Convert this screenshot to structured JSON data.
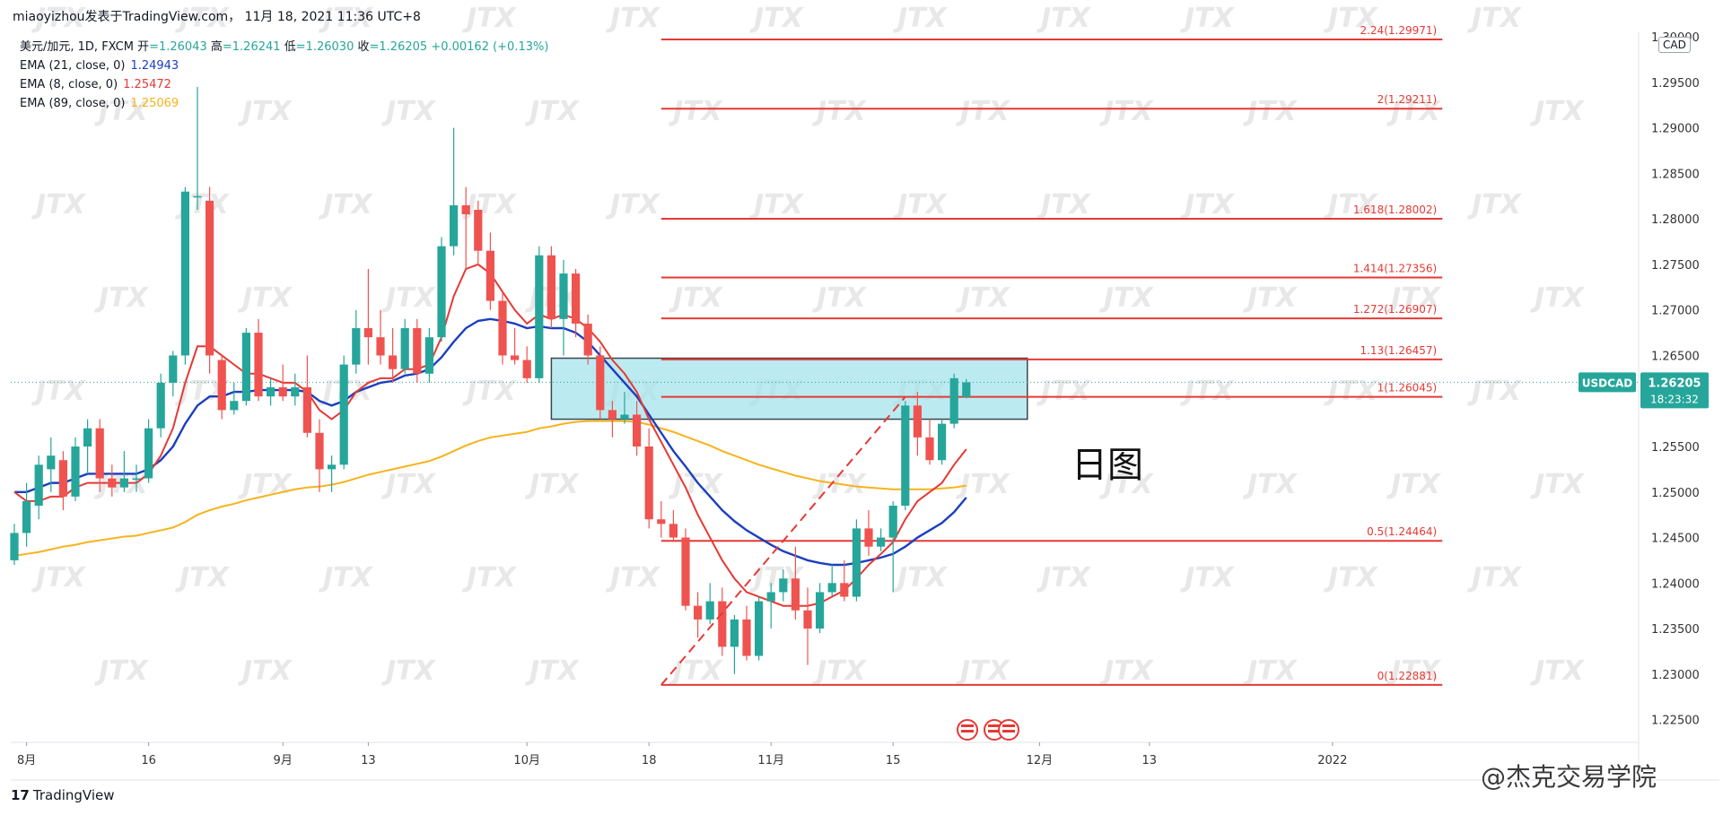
{
  "header": {
    "caption": "miaoyizhou发表于TradingView.com， 11月 18, 2021 11:36 UTC+8"
  },
  "legend": {
    "symbol_line": "美元/加元, 1D, FXCM",
    "open_label": "开",
    "open_value": "=1.26043",
    "high_label": "高",
    "high_value": "=1.26241",
    "low_label": "低",
    "low_value": "=1.26030",
    "close_label": "收",
    "close_value": "=1.26205",
    "change": "+0.00162 (+0.13%)",
    "ema21": {
      "label": "EMA (21, close, 0)",
      "value": "1.24943",
      "color": "#1a3fbf"
    },
    "ema8": {
      "label": "EMA (8, close, 0)",
      "value": "1.25472",
      "color": "#e53935"
    },
    "ema89": {
      "label": "EMA (89, close, 0)",
      "value": "1.25069",
      "color": "#f6b31c"
    }
  },
  "currency_badge": "CAD",
  "price_tag": {
    "symbol": "USDCAD",
    "price": "1.26205",
    "countdown": "18:23:32",
    "color": "#26a69a"
  },
  "note": "日图",
  "footer": {
    "logo_mark": "17",
    "logo_text": "TradingView",
    "brand": "@杰克交易学院"
  },
  "watermark_text": "JTX",
  "colors": {
    "up": "#26a69a",
    "down": "#ef5350",
    "fib": "#e53935",
    "zone_fill": "#a6e3ec",
    "zone_border": "#37474f"
  },
  "chart_data": {
    "type": "candlestick",
    "ylim": [
      1.2225,
      1.3005
    ],
    "y_ticks": [
      "1.22500",
      "1.23000",
      "1.23500",
      "1.24000",
      "1.24500",
      "1.25000",
      "1.25500",
      "1.26000",
      "1.26500",
      "1.27000",
      "1.27500",
      "1.28000",
      "1.28500",
      "1.29000",
      "1.29500",
      "1.30000"
    ],
    "x_ticks": [
      {
        "label": "8月",
        "i": 1
      },
      {
        "label": "16",
        "i": 11
      },
      {
        "label": "9月",
        "i": 22
      },
      {
        "label": "13",
        "i": 29
      },
      {
        "label": "10月",
        "i": 42
      },
      {
        "label": "18",
        "i": 52
      },
      {
        "label": "11月",
        "i": 62
      },
      {
        "label": "15",
        "i": 72
      },
      {
        "label": "12月",
        "i": 84
      },
      {
        "label": "13",
        "i": 93
      },
      {
        "label": "2022",
        "i": 108
      }
    ],
    "candles": [
      {
        "o": 1.2425,
        "h": 1.2465,
        "l": 1.242,
        "c": 1.2455
      },
      {
        "o": 1.2455,
        "h": 1.251,
        "l": 1.244,
        "c": 1.249
      },
      {
        "o": 1.2485,
        "h": 1.254,
        "l": 1.247,
        "c": 1.253
      },
      {
        "o": 1.2525,
        "h": 1.256,
        "l": 1.25,
        "c": 1.254
      },
      {
        "o": 1.2535,
        "h": 1.2545,
        "l": 1.248,
        "c": 1.2495
      },
      {
        "o": 1.2495,
        "h": 1.256,
        "l": 1.249,
        "c": 1.255
      },
      {
        "o": 1.255,
        "h": 1.258,
        "l": 1.252,
        "c": 1.257
      },
      {
        "o": 1.257,
        "h": 1.258,
        "l": 1.25,
        "c": 1.2515
      },
      {
        "o": 1.2515,
        "h": 1.253,
        "l": 1.2495,
        "c": 1.2505
      },
      {
        "o": 1.2505,
        "h": 1.2545,
        "l": 1.25,
        "c": 1.2515
      },
      {
        "o": 1.2515,
        "h": 1.253,
        "l": 1.25,
        "c": 1.2515
      },
      {
        "o": 1.2515,
        "h": 1.258,
        "l": 1.251,
        "c": 1.257
      },
      {
        "o": 1.257,
        "h": 1.263,
        "l": 1.256,
        "c": 1.262
      },
      {
        "o": 1.262,
        "h": 1.2655,
        "l": 1.2605,
        "c": 1.265
      },
      {
        "o": 1.265,
        "h": 1.2835,
        "l": 1.264,
        "c": 1.283
      },
      {
        "o": 1.2825,
        "h": 1.2945,
        "l": 1.281,
        "c": 1.2825
      },
      {
        "o": 1.282,
        "h": 1.2835,
        "l": 1.263,
        "c": 1.265
      },
      {
        "o": 1.2645,
        "h": 1.265,
        "l": 1.258,
        "c": 1.259
      },
      {
        "o": 1.259,
        "h": 1.262,
        "l": 1.2585,
        "c": 1.26
      },
      {
        "o": 1.26,
        "h": 1.268,
        "l": 1.2595,
        "c": 1.2675
      },
      {
        "o": 1.2675,
        "h": 1.269,
        "l": 1.26,
        "c": 1.2605
      },
      {
        "o": 1.2605,
        "h": 1.2625,
        "l": 1.2595,
        "c": 1.2615
      },
      {
        "o": 1.2615,
        "h": 1.264,
        "l": 1.26,
        "c": 1.2605
      },
      {
        "o": 1.2605,
        "h": 1.263,
        "l": 1.2595,
        "c": 1.2615
      },
      {
        "o": 1.2615,
        "h": 1.265,
        "l": 1.256,
        "c": 1.2565
      },
      {
        "o": 1.2565,
        "h": 1.258,
        "l": 1.25,
        "c": 1.2525
      },
      {
        "o": 1.2525,
        "h": 1.254,
        "l": 1.25,
        "c": 1.253
      },
      {
        "o": 1.253,
        "h": 1.265,
        "l": 1.2525,
        "c": 1.264
      },
      {
        "o": 1.264,
        "h": 1.27,
        "l": 1.263,
        "c": 1.268
      },
      {
        "o": 1.268,
        "h": 1.2745,
        "l": 1.264,
        "c": 1.267
      },
      {
        "o": 1.267,
        "h": 1.27,
        "l": 1.264,
        "c": 1.265
      },
      {
        "o": 1.265,
        "h": 1.268,
        "l": 1.262,
        "c": 1.2635
      },
      {
        "o": 1.2635,
        "h": 1.269,
        "l": 1.263,
        "c": 1.268
      },
      {
        "o": 1.268,
        "h": 1.269,
        "l": 1.262,
        "c": 1.263
      },
      {
        "o": 1.263,
        "h": 1.268,
        "l": 1.262,
        "c": 1.267
      },
      {
        "o": 1.267,
        "h": 1.278,
        "l": 1.2665,
        "c": 1.277
      },
      {
        "o": 1.277,
        "h": 1.29,
        "l": 1.276,
        "c": 1.2815
      },
      {
        "o": 1.2815,
        "h": 1.2835,
        "l": 1.2745,
        "c": 1.2805
      },
      {
        "o": 1.281,
        "h": 1.282,
        "l": 1.275,
        "c": 1.2765
      },
      {
        "o": 1.2765,
        "h": 1.2785,
        "l": 1.27,
        "c": 1.271
      },
      {
        "o": 1.271,
        "h": 1.272,
        "l": 1.264,
        "c": 1.265
      },
      {
        "o": 1.265,
        "h": 1.268,
        "l": 1.264,
        "c": 1.2645
      },
      {
        "o": 1.2645,
        "h": 1.266,
        "l": 1.262,
        "c": 1.2625
      },
      {
        "o": 1.2625,
        "h": 1.277,
        "l": 1.262,
        "c": 1.276
      },
      {
        "o": 1.276,
        "h": 1.277,
        "l": 1.268,
        "c": 1.269
      },
      {
        "o": 1.269,
        "h": 1.2755,
        "l": 1.265,
        "c": 1.274
      },
      {
        "o": 1.274,
        "h": 1.2745,
        "l": 1.267,
        "c": 1.2685
      },
      {
        "o": 1.2685,
        "h": 1.2695,
        "l": 1.264,
        "c": 1.265
      },
      {
        "o": 1.265,
        "h": 1.266,
        "l": 1.258,
        "c": 1.259
      },
      {
        "o": 1.259,
        "h": 1.26,
        "l": 1.256,
        "c": 1.258
      },
      {
        "o": 1.258,
        "h": 1.261,
        "l": 1.2575,
        "c": 1.2585
      },
      {
        "o": 1.2585,
        "h": 1.26,
        "l": 1.254,
        "c": 1.255
      },
      {
        "o": 1.255,
        "h": 1.257,
        "l": 1.246,
        "c": 1.247
      },
      {
        "o": 1.247,
        "h": 1.249,
        "l": 1.245,
        "c": 1.2465
      },
      {
        "o": 1.2465,
        "h": 1.248,
        "l": 1.2445,
        "c": 1.245
      },
      {
        "o": 1.245,
        "h": 1.246,
        "l": 1.237,
        "c": 1.2375
      },
      {
        "o": 1.2375,
        "h": 1.239,
        "l": 1.234,
        "c": 1.236
      },
      {
        "o": 1.236,
        "h": 1.24,
        "l": 1.2355,
        "c": 1.238
      },
      {
        "o": 1.238,
        "h": 1.2395,
        "l": 1.232,
        "c": 1.233
      },
      {
        "o": 1.233,
        "h": 1.2365,
        "l": 1.23,
        "c": 1.236
      },
      {
        "o": 1.236,
        "h": 1.2375,
        "l": 1.2315,
        "c": 1.232
      },
      {
        "o": 1.232,
        "h": 1.2385,
        "l": 1.2315,
        "c": 1.238
      },
      {
        "o": 1.238,
        "h": 1.24,
        "l": 1.235,
        "c": 1.239
      },
      {
        "o": 1.239,
        "h": 1.2415,
        "l": 1.238,
        "c": 1.2405
      },
      {
        "o": 1.2405,
        "h": 1.244,
        "l": 1.236,
        "c": 1.237
      },
      {
        "o": 1.237,
        "h": 1.2395,
        "l": 1.231,
        "c": 1.235
      },
      {
        "o": 1.235,
        "h": 1.24,
        "l": 1.2345,
        "c": 1.239
      },
      {
        "o": 1.239,
        "h": 1.242,
        "l": 1.2385,
        "c": 1.24
      },
      {
        "o": 1.24,
        "h": 1.2425,
        "l": 1.238,
        "c": 1.2385
      },
      {
        "o": 1.2385,
        "h": 1.247,
        "l": 1.238,
        "c": 1.246
      },
      {
        "o": 1.246,
        "h": 1.248,
        "l": 1.243,
        "c": 1.244
      },
      {
        "o": 1.244,
        "h": 1.246,
        "l": 1.2435,
        "c": 1.245
      },
      {
        "o": 1.245,
        "h": 1.249,
        "l": 1.239,
        "c": 1.2485
      },
      {
        "o": 1.2485,
        "h": 1.26,
        "l": 1.248,
        "c": 1.2595
      },
      {
        "o": 1.2595,
        "h": 1.261,
        "l": 1.254,
        "c": 1.256
      },
      {
        "o": 1.256,
        "h": 1.258,
        "l": 1.253,
        "c": 1.2535
      },
      {
        "o": 1.2535,
        "h": 1.258,
        "l": 1.253,
        "c": 1.2575
      },
      {
        "o": 1.2575,
        "h": 1.263,
        "l": 1.257,
        "c": 1.2625
      },
      {
        "o": 1.26043,
        "h": 1.26241,
        "l": 1.2603,
        "c": 1.26205
      }
    ],
    "ema8": [
      1.25,
      1.249,
      1.249,
      1.2495,
      1.2495,
      1.2505,
      1.251,
      1.251,
      1.251,
      1.251,
      1.251,
      1.252,
      1.254,
      1.257,
      1.262,
      1.266,
      1.266,
      1.265,
      1.264,
      1.263,
      1.263,
      1.2625,
      1.262,
      1.262,
      1.261,
      1.259,
      1.258,
      1.259,
      1.261,
      1.262,
      1.2625,
      1.2625,
      1.2635,
      1.2635,
      1.264,
      1.267,
      1.2715,
      1.2745,
      1.275,
      1.274,
      1.272,
      1.27,
      1.2685,
      1.2695,
      1.269,
      1.2695,
      1.269,
      1.268,
      1.2665,
      1.2645,
      1.263,
      1.261,
      1.258,
      1.2555,
      1.253,
      1.2505,
      1.2475,
      1.245,
      1.2425,
      1.2405,
      1.239,
      1.2385,
      1.238,
      1.2375,
      1.2375,
      1.2375,
      1.2378,
      1.2385,
      1.2392,
      1.2405,
      1.242,
      1.2432,
      1.2445,
      1.247,
      1.249,
      1.25,
      1.251,
      1.253,
      1.2547
    ],
    "ema21": [
      1.25,
      1.25,
      1.2505,
      1.251,
      1.251,
      1.2515,
      1.252,
      1.252,
      1.252,
      1.252,
      1.252,
      1.2525,
      1.2535,
      1.255,
      1.2575,
      1.2595,
      1.2605,
      1.2605,
      1.261,
      1.261,
      1.2612,
      1.2612,
      1.2612,
      1.2612,
      1.261,
      1.26,
      1.2595,
      1.26,
      1.261,
      1.2615,
      1.262,
      1.2622,
      1.2628,
      1.263,
      1.2635,
      1.2648,
      1.2665,
      1.268,
      1.2688,
      1.269,
      1.2688,
      1.2685,
      1.268,
      1.2682,
      1.268,
      1.268,
      1.2675,
      1.2665,
      1.265,
      1.2635,
      1.262,
      1.2605,
      1.2585,
      1.2565,
      1.2545,
      1.2528,
      1.251,
      1.2495,
      1.248,
      1.2468,
      1.2458,
      1.245,
      1.2442,
      1.2435,
      1.243,
      1.2425,
      1.2422,
      1.242,
      1.242,
      1.2422,
      1.2425,
      1.2428,
      1.2432,
      1.244,
      1.245,
      1.2458,
      1.2466,
      1.2478,
      1.2494
    ],
    "ema89": [
      1.243,
      1.2432,
      1.2434,
      1.2437,
      1.244,
      1.2442,
      1.2445,
      1.2447,
      1.2449,
      1.2451,
      1.2452,
      1.2455,
      1.2458,
      1.2461,
      1.2467,
      1.2475,
      1.248,
      1.2484,
      1.2487,
      1.2491,
      1.2494,
      1.2497,
      1.25,
      1.2503,
      1.2505,
      1.2506,
      1.2508,
      1.2511,
      1.2515,
      1.2519,
      1.2522,
      1.2525,
      1.2528,
      1.2531,
      1.2534,
      1.2539,
      1.2545,
      1.2551,
      1.2556,
      1.256,
      1.2562,
      1.2564,
      1.2566,
      1.257,
      1.2572,
      1.2575,
      1.2577,
      1.2578,
      1.2578,
      1.2578,
      1.2578,
      1.2577,
      1.2574,
      1.257,
      1.2566,
      1.2561,
      1.2556,
      1.2551,
      1.2545,
      1.254,
      1.2535,
      1.253,
      1.2526,
      1.2522,
      1.2518,
      1.2515,
      1.2512,
      1.251,
      1.2508,
      1.2506,
      1.2505,
      1.2504,
      1.2503,
      1.2503,
      1.2503,
      1.2503,
      1.2504,
      1.2505,
      1.2507
    ],
    "fib_levels": [
      {
        "label": "2.24(1.29971)",
        "price": 1.29971
      },
      {
        "label": "2(1.29211)",
        "price": 1.29211
      },
      {
        "label": "1.618(1.28002)",
        "price": 1.28002
      },
      {
        "label": "1.414(1.27356)",
        "price": 1.27356
      },
      {
        "label": "1.272(1.26907)",
        "price": 1.26907
      },
      {
        "label": "1.13(1.26457)",
        "price": 1.26457
      },
      {
        "label": "1(1.26045)",
        "price": 1.26045
      },
      {
        "label": "0.5(1.24464)",
        "price": 1.24464
      },
      {
        "label": "0(1.22881)",
        "price": 1.22881
      }
    ],
    "fib_start_i": 53,
    "fib_end_i": 117,
    "trendline": {
      "from_i": 53,
      "from_price": 1.22881,
      "to_i": 73,
      "to_price": 1.26045
    },
    "zone": {
      "from_i": 44,
      "to_i": 83,
      "top": 1.2647,
      "bottom": 1.258
    },
    "last_price": 1.26205
  }
}
